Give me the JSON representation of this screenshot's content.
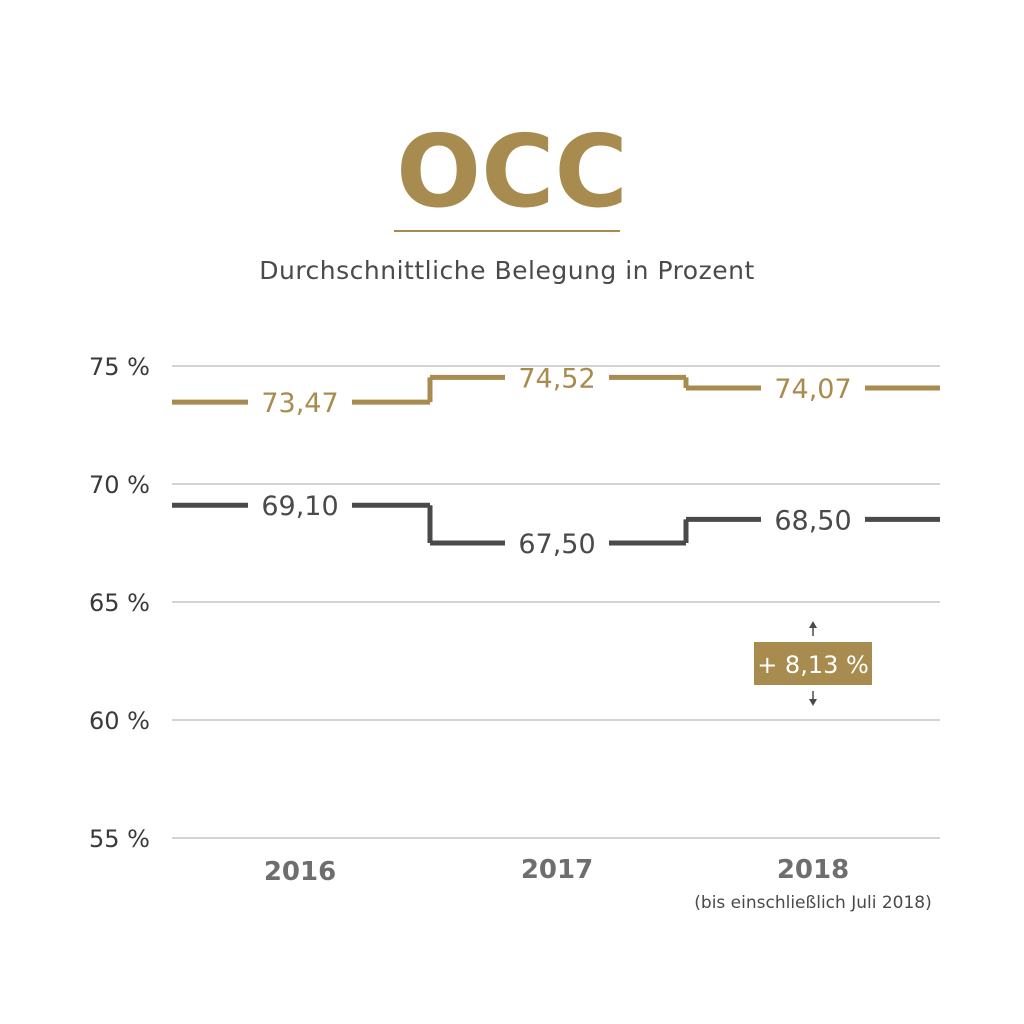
{
  "colors": {
    "gold": "#A88B4E",
    "dark": "#4A4A4A",
    "grid": "#A9A9A9",
    "axis_text": "#3A3A3A",
    "year_text": "#6E6E6E",
    "badge_text": "#FFFFFF"
  },
  "chart_data": {
    "type": "line",
    "step": true,
    "title": "OCC",
    "subtitle": "Durchschnittliche Belegung in Prozent",
    "categories": [
      "2016",
      "2017",
      "2018"
    ],
    "category_note": "(bis einschließlich Juli 2018)",
    "ylim": [
      55,
      75
    ],
    "yticks": [
      75,
      70,
      65,
      60,
      55
    ],
    "ytick_labels": [
      "75 %",
      "70 %",
      "65 %",
      "60 %",
      "55 %"
    ],
    "grid": true,
    "legend": "none",
    "series": [
      {
        "color": "gold",
        "values": [
          73.47,
          74.52,
          74.07
        ],
        "labels": [
          "73,47",
          "74,52",
          "74,07"
        ]
      },
      {
        "color": "dark",
        "values": [
          69.1,
          67.5,
          68.5
        ],
        "labels": [
          "69,10",
          "67,50",
          "68,50"
        ]
      }
    ],
    "annotation": {
      "text": "+ 8,13 %",
      "category": "2018"
    }
  }
}
